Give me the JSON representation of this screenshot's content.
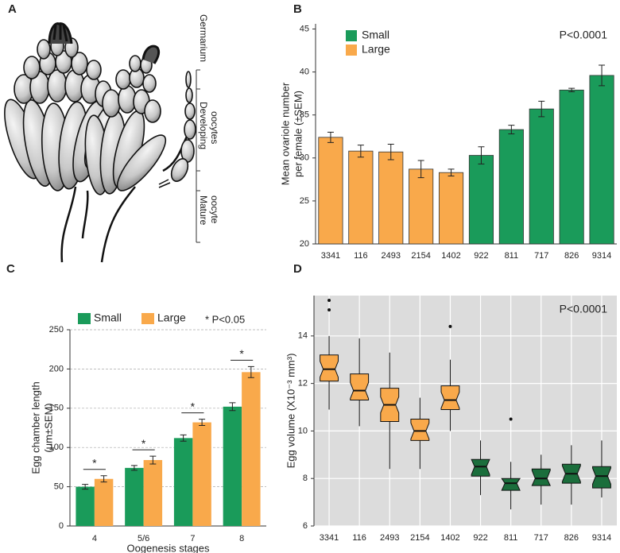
{
  "diagram": {
    "panel": "A",
    "labels": [
      "Germarium",
      "Developing",
      "oocytes",
      "Mature",
      "oocyte"
    ]
  },
  "chart_data": [
    {
      "type": "bar",
      "panel": "B",
      "ylabel": [
        "Mean ovariole number",
        "per female (±SEM)"
      ],
      "annotation": "P<0.0001",
      "categories": [
        "3341",
        "116",
        "2493",
        "2154",
        "1402",
        "922",
        "811",
        "717",
        "826",
        "9314"
      ],
      "series": [
        {
          "name": "Small",
          "color": "#1a9b5a",
          "values": [
            null,
            null,
            null,
            null,
            null,
            30.3,
            33.3,
            35.7,
            37.9,
            39.6
          ],
          "errors": [
            null,
            null,
            null,
            null,
            null,
            1.0,
            0.5,
            0.9,
            0.2,
            1.2
          ]
        },
        {
          "name": "Large",
          "color": "#f9a94b",
          "values": [
            32.4,
            30.8,
            30.7,
            28.7,
            28.3,
            null,
            null,
            null,
            null,
            null
          ],
          "errors": [
            0.6,
            0.7,
            0.9,
            1.0,
            0.4,
            null,
            null,
            null,
            null,
            null
          ]
        }
      ],
      "ylim": [
        20,
        45.6
      ],
      "yticks": [
        20,
        25,
        30,
        35,
        40,
        45
      ],
      "legend": "top-left"
    },
    {
      "type": "grouped-bar",
      "panel": "C",
      "xlabel": "Oogenesis stages",
      "ylabel": [
        "Egg chamber length",
        "(μm±SEM)"
      ],
      "annotation": "* P<0.05",
      "categories": [
        "4",
        "5/6",
        "7",
        "8"
      ],
      "significance_marks": [
        "*",
        "*",
        "*",
        "*"
      ],
      "series": [
        {
          "name": "Small",
          "color": "#1a9b5a",
          "values": [
            50,
            74,
            112,
            152
          ],
          "errors": [
            3,
            3,
            4,
            5
          ]
        },
        {
          "name": "Large",
          "color": "#f9a94b",
          "values": [
            60,
            84,
            132,
            196
          ],
          "errors": [
            4,
            5,
            4,
            7
          ]
        }
      ],
      "ylim": [
        0,
        250
      ],
      "yticks": [
        0,
        50,
        100,
        150,
        200,
        250
      ],
      "grid": true,
      "legend": "top"
    },
    {
      "type": "box",
      "panel": "D",
      "ylabel": "Egg volume (X10⁻³ mm³)",
      "annotation": "P<0.0001",
      "categories": [
        "3341",
        "116",
        "2493",
        "2154",
        "1402",
        "922",
        "811",
        "717",
        "826",
        "9314"
      ],
      "colors": [
        "#f9a94b",
        "#f9a94b",
        "#f9a94b",
        "#f9a94b",
        "#f9a94b",
        "#1b6e3c",
        "#1b6e3c",
        "#1b6e3c",
        "#1b6e3c",
        "#1b6e3c"
      ],
      "whisker_low": [
        10.9,
        10.2,
        8.4,
        8.4,
        10.0,
        7.3,
        6.7,
        6.9,
        6.9,
        7.2
      ],
      "q1": [
        12.1,
        11.3,
        10.4,
        9.6,
        10.9,
        8.1,
        7.5,
        7.7,
        7.8,
        7.6
      ],
      "median": [
        12.6,
        11.7,
        11.1,
        10.0,
        11.3,
        8.5,
        7.8,
        8.0,
        8.2,
        8.1
      ],
      "q3": [
        13.2,
        12.4,
        11.8,
        10.5,
        11.9,
        8.8,
        8.0,
        8.4,
        8.6,
        8.5
      ],
      "whisker_high": [
        14.0,
        13.9,
        13.3,
        11.4,
        13.0,
        9.6,
        8.7,
        9.0,
        9.4,
        9.6
      ],
      "outliers": [
        [
          15.1,
          15.5
        ],
        [],
        [],
        [],
        [
          14.4
        ],
        [],
        [
          10.5
        ],
        [],
        [],
        []
      ],
      "ylim": [
        6,
        15.7
      ],
      "yticks": [
        6,
        8,
        10,
        12,
        14
      ],
      "grid": true,
      "plot_background": "#dcdcdc"
    }
  ]
}
